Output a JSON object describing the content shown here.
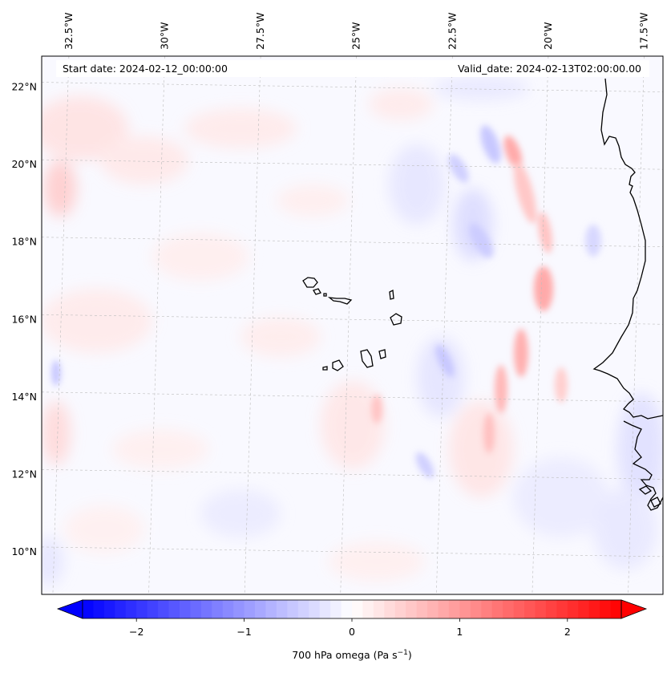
{
  "map": {
    "variable_label": "700 hPa omega (Pa s",
    "variable_unit_sup": "−1",
    "variable_label_close": ")",
    "start_date": "Start date: 2024-02-12_00:00:00",
    "valid_date": "Valid_date: 2024-02-13T02:00:00.00",
    "extent": {
      "lon": [
        -33.0,
        -16.8
      ],
      "lat": [
        8.9,
        22.8
      ]
    },
    "lon_ticks": [
      {
        "value": -32.5,
        "label": "32.5°W"
      },
      {
        "value": -30.0,
        "label": "30°W"
      },
      {
        "value": -27.5,
        "label": "27.5°W"
      },
      {
        "value": -25.0,
        "label": "25°W"
      },
      {
        "value": -22.5,
        "label": "22.5°W"
      },
      {
        "value": -20.0,
        "label": "20°W"
      },
      {
        "value": -17.5,
        "label": "17.5°W"
      }
    ],
    "lat_ticks": [
      {
        "value": 22,
        "label": "22°N"
      },
      {
        "value": 20,
        "label": "20°N"
      },
      {
        "value": 18,
        "label": "18°N"
      },
      {
        "value": 16,
        "label": "16°N"
      },
      {
        "value": 14,
        "label": "14°N"
      },
      {
        "value": 12,
        "label": "12°N"
      },
      {
        "value": 10,
        "label": "10°N"
      }
    ],
    "colorbar": {
      "min": -2.5,
      "max": 2.5,
      "ticks": [
        {
          "value": -2,
          "label": "−2"
        },
        {
          "value": -1,
          "label": "−1"
        },
        {
          "value": 0,
          "label": "0"
        },
        {
          "value": 1,
          "label": "1"
        },
        {
          "value": 2,
          "label": "2"
        }
      ],
      "colormap": "bwr",
      "colors": {
        "negative": "#0000ff",
        "zero": "#ffffff",
        "positive": "#ff0000"
      }
    },
    "gridlines": true,
    "coastline_color": "#000000"
  }
}
